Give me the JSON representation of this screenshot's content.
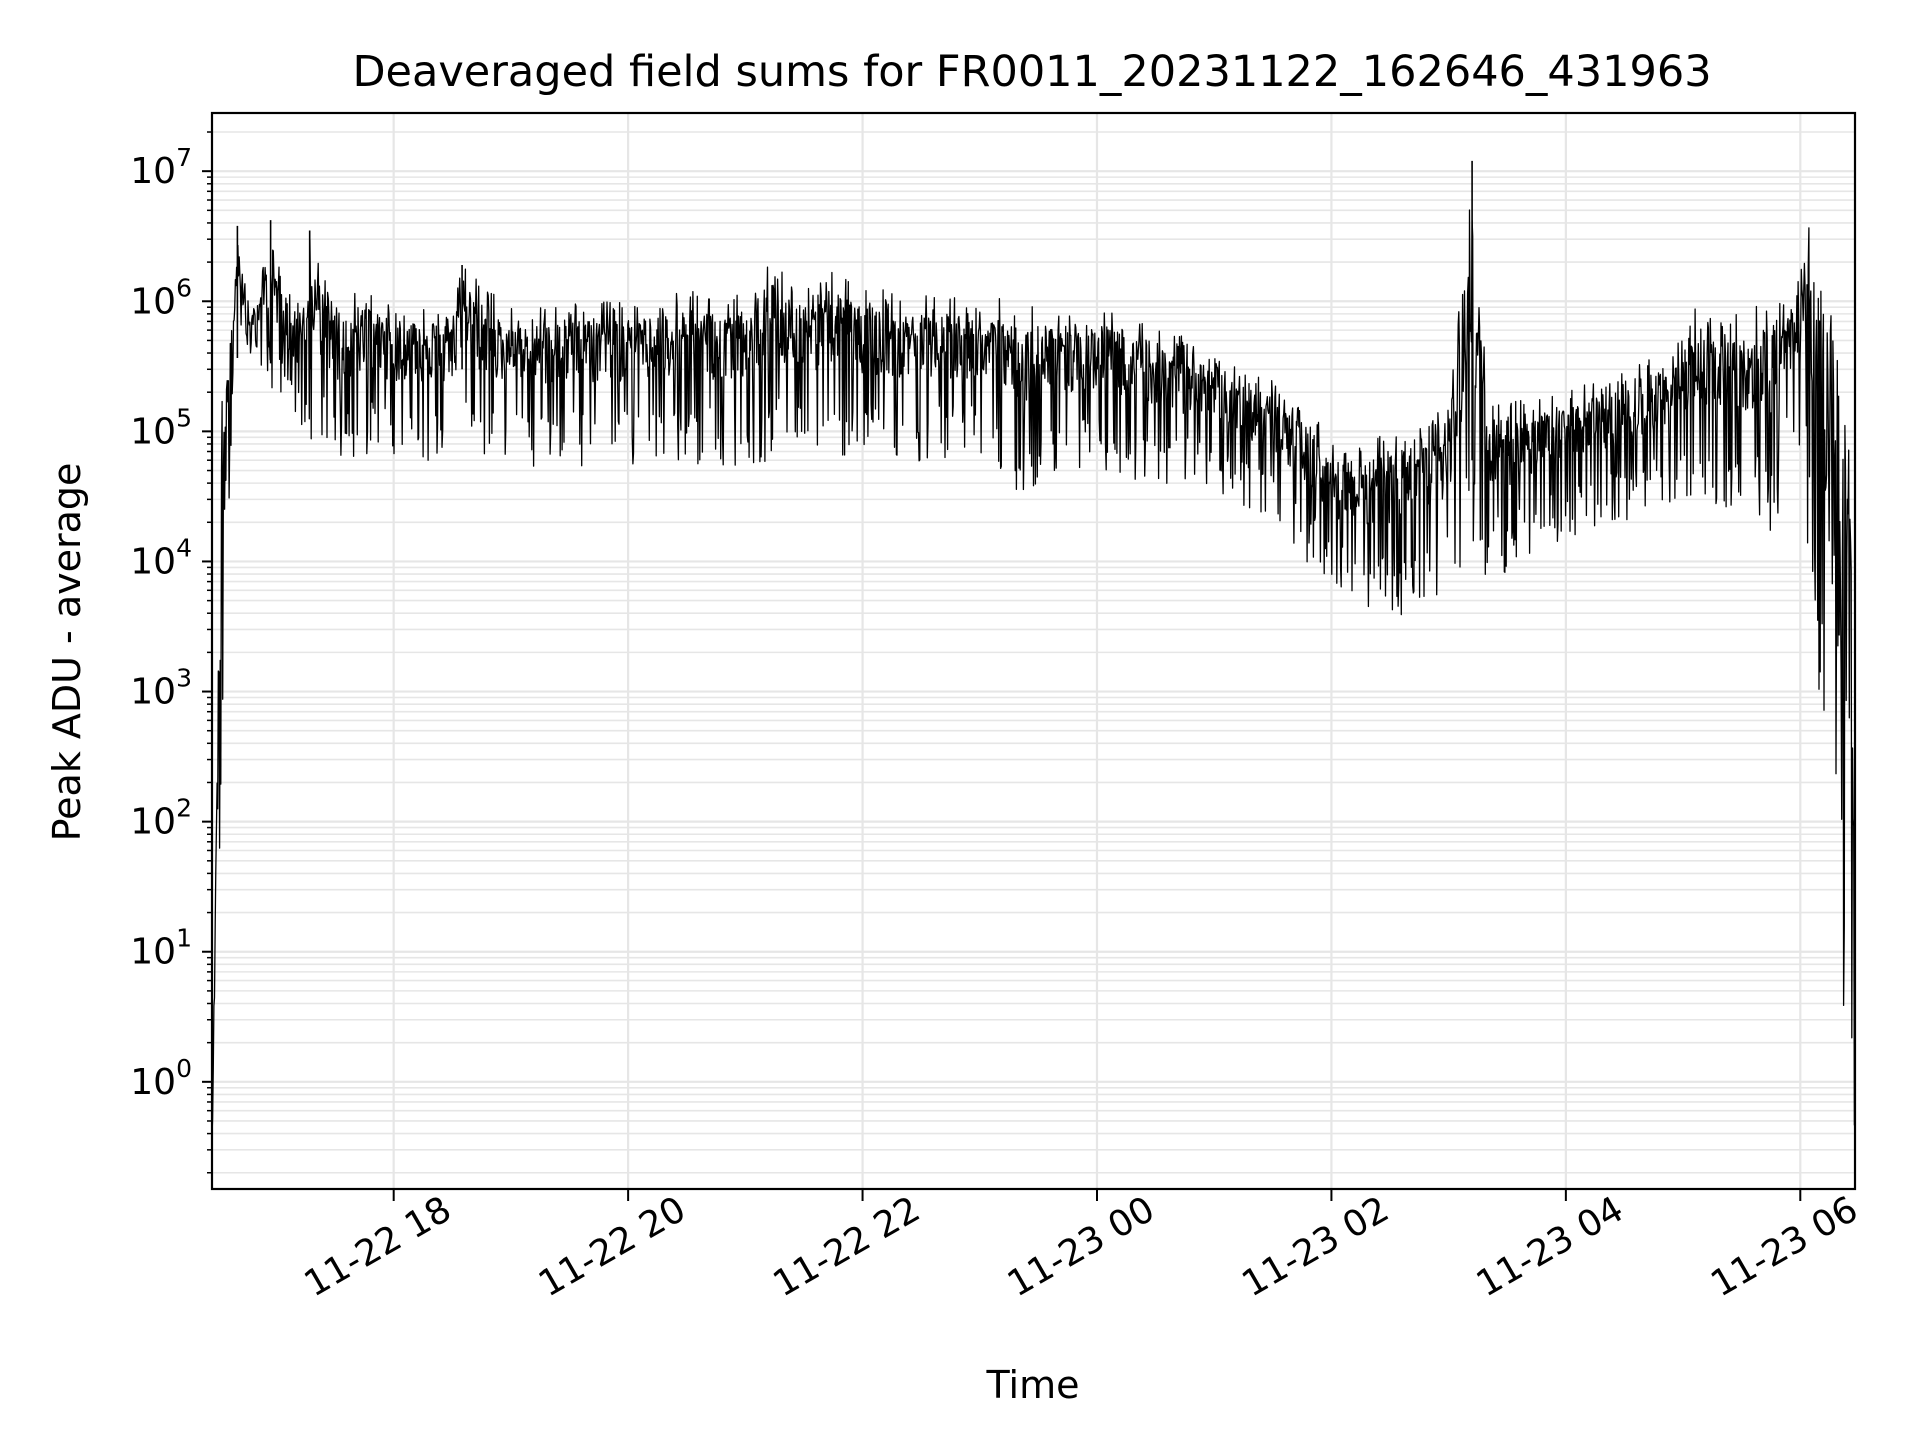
{
  "chart_data": {
    "type": "line",
    "title": "Deaveraged field sums for FR0011_20231122_162646_431963",
    "xlabel": "Time",
    "ylabel": "Peak ADU - average",
    "y_scale": "log",
    "ylim": [
      0.15,
      28000000
    ],
    "xlim": [
      "2023-11-22 16:27",
      "2023-11-23 06:28"
    ],
    "grid": true,
    "line_color": "#000000",
    "grid_color": "#e6e6e6",
    "x_ticks": [
      {
        "value": "2023-11-22 18:00",
        "label": "11-22 18"
      },
      {
        "value": "2023-11-22 20:00",
        "label": "11-22 20"
      },
      {
        "value": "2023-11-22 22:00",
        "label": "11-22 22"
      },
      {
        "value": "2023-11-23 00:00",
        "label": "11-23 00"
      },
      {
        "value": "2023-11-23 02:00",
        "label": "11-23 02"
      },
      {
        "value": "2023-11-23 04:00",
        "label": "11-23 04"
      },
      {
        "value": "2023-11-23 06:00",
        "label": "11-23 06"
      }
    ],
    "y_ticks": [
      {
        "value": 1,
        "base": "10",
        "exp": "0"
      },
      {
        "value": 10,
        "base": "10",
        "exp": "1"
      },
      {
        "value": 100,
        "base": "10",
        "exp": "2"
      },
      {
        "value": 1000,
        "base": "10",
        "exp": "3"
      },
      {
        "value": 10000,
        "base": "10",
        "exp": "4"
      },
      {
        "value": 100000,
        "base": "10",
        "exp": "5"
      },
      {
        "value": 1000000,
        "base": "10",
        "exp": "6"
      },
      {
        "value": 10000000,
        "base": "10",
        "exp": "7"
      }
    ],
    "series": [
      {
        "upper_envelope": [
          [
            "2023-11-22 16:27",
            0.5
          ],
          [
            "2023-11-22 16:32",
            300000
          ],
          [
            "2023-11-22 16:38",
            900000
          ],
          [
            "2023-11-22 16:40",
            3800000
          ],
          [
            "2023-11-22 16:45",
            1100000
          ],
          [
            "2023-11-22 16:50",
            1000000
          ],
          [
            "2023-11-22 16:57",
            4200000
          ],
          [
            "2023-11-22 17:10",
            800000
          ],
          [
            "2023-11-22 17:17",
            3500000
          ],
          [
            "2023-11-22 17:30",
            900000
          ],
          [
            "2023-11-22 17:45",
            1300000
          ],
          [
            "2023-11-22 18:00",
            1000000
          ],
          [
            "2023-11-22 18:30",
            900000
          ],
          [
            "2023-11-22 18:35",
            1900000
          ],
          [
            "2023-11-22 19:00",
            900000
          ],
          [
            "2023-11-22 19:30",
            1000000
          ],
          [
            "2023-11-22 20:00",
            1000000
          ],
          [
            "2023-11-22 20:30",
            1200000
          ],
          [
            "2023-11-22 21:00",
            1100000
          ],
          [
            "2023-11-22 21:12",
            2200000
          ],
          [
            "2023-11-22 21:30",
            1300000
          ],
          [
            "2023-11-22 21:45",
            1900000
          ],
          [
            "2023-11-22 22:00",
            1300000
          ],
          [
            "2023-11-22 22:30",
            1100000
          ],
          [
            "2023-11-22 23:00",
            1200000
          ],
          [
            "2023-11-22 23:30",
            1000000
          ],
          [
            "2023-11-23 00:00",
            900000
          ],
          [
            "2023-11-23 00:30",
            700000
          ],
          [
            "2023-11-23 01:00",
            400000
          ],
          [
            "2023-11-23 01:30",
            250000
          ],
          [
            "2023-11-23 01:50",
            150000
          ],
          [
            "2023-11-23 02:00",
            80000
          ],
          [
            "2023-11-23 02:30",
            100000
          ],
          [
            "2023-11-23 03:00",
            150000
          ],
          [
            "2023-11-23 03:12",
            12000000
          ],
          [
            "2023-11-23 03:20",
            180000
          ],
          [
            "2023-11-23 04:00",
            200000
          ],
          [
            "2023-11-23 04:30",
            300000
          ],
          [
            "2023-11-23 05:00",
            500000
          ],
          [
            "2023-11-23 05:05",
            1000000
          ],
          [
            "2023-11-23 05:30",
            800000
          ],
          [
            "2023-11-23 06:00",
            1500000
          ],
          [
            "2023-11-23 06:02",
            4500000
          ],
          [
            "2023-11-23 06:10",
            3800000
          ],
          [
            "2023-11-23 06:25",
            150000
          ],
          [
            "2023-11-23 06:28",
            10000
          ]
        ],
        "lower_envelope": [
          [
            "2023-11-22 16:27",
            0.15
          ],
          [
            "2023-11-22 16:38",
            400000
          ],
          [
            "2023-11-22 16:50",
            400000
          ],
          [
            "2023-11-22 17:00",
            150000
          ],
          [
            "2023-11-22 17:30",
            60000
          ],
          [
            "2023-11-22 18:00",
            60000
          ],
          [
            "2023-11-22 19:00",
            55000
          ],
          [
            "2023-11-22 20:00",
            50000
          ],
          [
            "2023-11-22 21:00",
            55000
          ],
          [
            "2023-11-22 22:00",
            60000
          ],
          [
            "2023-11-22 23:00",
            55000
          ],
          [
            "2023-11-22 23:25",
            26000
          ],
          [
            "2023-11-23 00:00",
            50000
          ],
          [
            "2023-11-23 00:30",
            35000
          ],
          [
            "2023-11-23 01:00",
            35000
          ],
          [
            "2023-11-23 01:30",
            20000
          ],
          [
            "2023-11-23 02:00",
            6000
          ],
          [
            "2023-11-23 02:15",
            4000
          ],
          [
            "2023-11-23 02:40",
            3200
          ],
          [
            "2023-11-23 03:00",
            7000
          ],
          [
            "2023-11-23 03:30",
            8000
          ],
          [
            "2023-11-23 04:00",
            15000
          ],
          [
            "2023-11-23 04:30",
            20000
          ],
          [
            "2023-11-23 05:00",
            30000
          ],
          [
            "2023-11-23 05:30",
            25000
          ],
          [
            "2023-11-23 05:45",
            15000
          ],
          [
            "2023-11-23 06:00",
            80000
          ],
          [
            "2023-11-23 06:28",
            0.15
          ]
        ]
      }
    ]
  }
}
